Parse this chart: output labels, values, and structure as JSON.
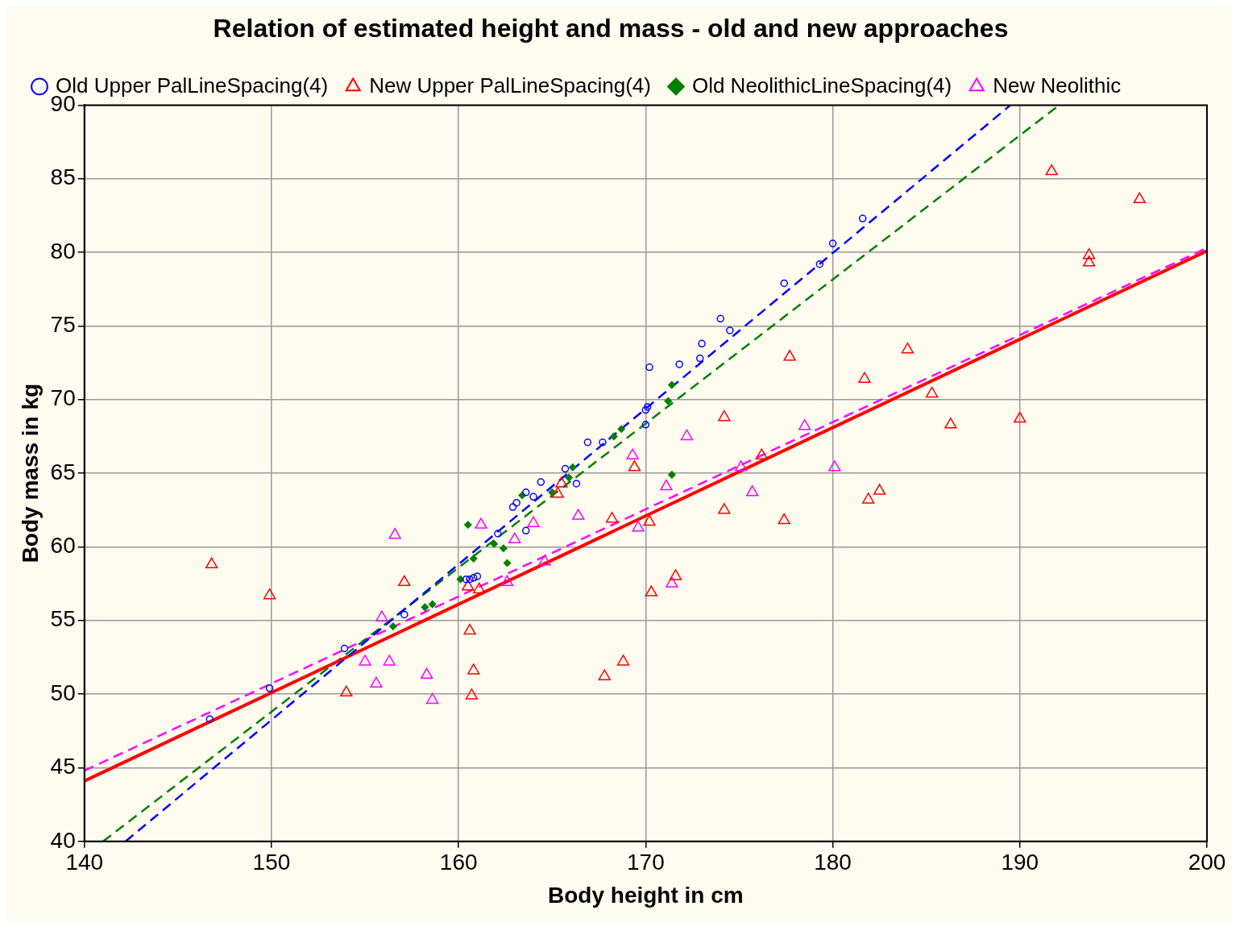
{
  "chart_data": {
    "type": "scatter",
    "title": "Relation of estimated height and mass - old and new approaches",
    "xlabel": "Body height in cm",
    "ylabel": "Body mass in kg",
    "xlim": [
      140,
      200
    ],
    "xticks": [
      140,
      150,
      160,
      170,
      180,
      190,
      200
    ],
    "ylim": [
      40,
      90
    ],
    "yticks": [
      40,
      45,
      50,
      55,
      60,
      65,
      70,
      75,
      80,
      85,
      90
    ],
    "grid": true,
    "legend": "top left",
    "series": [
      {
        "name": "Old Upper PalLineSpacing(4)",
        "color": "#0000ff",
        "marker": "circle",
        "x": [
          146.7,
          149.9,
          153.9,
          157.1,
          160.4,
          160.6,
          160.8,
          161.0,
          162.1,
          162.9,
          163.1,
          163.6,
          163.6,
          164.0,
          164.4,
          165.7,
          166.3,
          166.9,
          167.7,
          170.0,
          170.0,
          170.1,
          170.2,
          171.8,
          172.9,
          173.0,
          174.0,
          174.5,
          177.4,
          179.3,
          180.0,
          181.6
        ],
        "values": [
          48.3,
          50.4,
          53.1,
          55.4,
          57.8,
          57.8,
          57.9,
          58.0,
          60.9,
          62.7,
          63.0,
          61.1,
          63.7,
          63.4,
          64.4,
          65.3,
          64.3,
          67.1,
          67.1,
          69.3,
          68.3,
          69.5,
          72.2,
          72.4,
          72.8,
          73.8,
          75.5,
          74.7,
          77.9,
          79.2,
          80.6,
          82.3
        ]
      },
      {
        "name": "New Upper PalLineSpacing(4)",
        "color": "#ff0000",
        "marker": "triangle",
        "x": [
          146.8,
          149.9,
          154.0,
          157.1,
          160.6,
          160.8,
          160.7,
          160.5,
          161.1,
          165.3,
          165.5,
          167.8,
          168.8,
          168.2,
          169.4,
          170.2,
          170.3,
          171.6,
          174.2,
          174.2,
          176.2,
          177.4,
          177.7,
          181.9,
          182.5,
          181.7,
          184.0,
          185.3,
          186.3,
          190.0,
          191.7,
          193.7,
          193.7,
          196.4
        ],
        "values": [
          58.8,
          56.7,
          50.1,
          57.6,
          54.3,
          51.6,
          49.9,
          57.3,
          57.1,
          63.6,
          64.3,
          51.2,
          52.2,
          61.9,
          65.4,
          61.7,
          56.9,
          58.0,
          68.8,
          62.5,
          66.2,
          61.8,
          72.9,
          63.2,
          63.8,
          71.4,
          73.4,
          70.4,
          68.3,
          68.7,
          85.5,
          79.8,
          79.3,
          83.6
        ]
      },
      {
        "name": "Old NeolithicLineSpacing(4)",
        "color": "#008000",
        "marker": "diamond",
        "x": [
          156.5,
          158.2,
          158.6,
          160.1,
          160.5,
          160.8,
          161.9,
          162.4,
          162.6,
          163.4,
          165.0,
          165.9,
          166.1,
          168.3,
          168.7,
          171.2,
          171.4,
          171.4
        ],
        "values": [
          54.6,
          55.9,
          56.1,
          57.8,
          61.5,
          59.2,
          60.2,
          59.9,
          58.9,
          63.5,
          63.7,
          64.7,
          65.4,
          67.5,
          68.0,
          69.9,
          71.0,
          64.9
        ]
      },
      {
        "name": "New Neolithic",
        "color": "#ff00ff",
        "marker": "triangle",
        "x": [
          155.0,
          155.6,
          155.9,
          156.3,
          156.6,
          158.3,
          158.6,
          161.2,
          162.6,
          163.0,
          164.0,
          164.6,
          166.4,
          169.3,
          169.6,
          171.1,
          171.4,
          172.2,
          175.1,
          175.7,
          178.5,
          180.1
        ],
        "values": [
          52.2,
          50.7,
          55.2,
          52.2,
          60.8,
          51.3,
          49.6,
          61.5,
          57.6,
          60.5,
          61.6,
          59.0,
          62.1,
          66.2,
          61.3,
          64.1,
          57.5,
          67.5,
          65.4,
          63.7,
          68.2,
          65.4
        ]
      },
      {
        "type": "line",
        "color": "#0000ff",
        "line_style": "dashed",
        "x": [
          142.2,
          189.5
        ],
        "values": [
          40,
          90
        ]
      },
      {
        "type": "line",
        "color": "#ff0000",
        "line_style": "solid",
        "x": [
          140,
          200
        ],
        "values": [
          44.1,
          80.1
        ]
      },
      {
        "type": "line",
        "color": "#008000",
        "line_style": "dashed",
        "x": [
          141.0,
          192.1
        ],
        "values": [
          40,
          90
        ]
      },
      {
        "type": "line",
        "color": "#ff00ff",
        "line_style": "dashed",
        "x": [
          140,
          200
        ],
        "values": [
          44.8,
          80.3
        ]
      }
    ]
  }
}
